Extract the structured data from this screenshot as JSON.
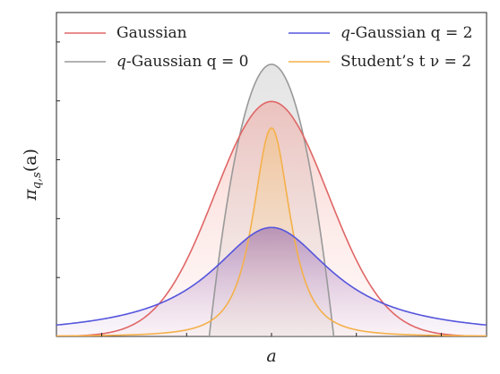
{
  "chart_data": {
    "type": "area",
    "xlabel_var": "a",
    "ylabel_main": "π",
    "ylabel_sub": "q,s",
    "ylabel_arg": "(a)",
    "xlim": [
      -3.8,
      3.8
    ],
    "ylim": [
      0,
      0.55
    ],
    "grid": false,
    "legend_placement": "top",
    "series": [
      {
        "name_pre": "",
        "name_var": "",
        "name_post": "Gaussian",
        "color": "#e06666",
        "fill": "#f4b6b0",
        "kind": "gaussian",
        "params": {
          "sigma": 1.0
        }
      },
      {
        "name_pre": "",
        "name_var": "q",
        "name_post": "-Gaussian q = 0",
        "color": "#999999",
        "fill": "#d8d8d8",
        "kind": "qgauss0",
        "params": {
          "width": 1.1,
          "peak": 0.462
        }
      },
      {
        "name_pre": "",
        "name_var": "q",
        "name_post": "-Gaussian q = 2",
        "color": "#5555dd",
        "fill": "#b89fd6",
        "kind": "cauchy",
        "params": {
          "gamma": 1.3,
          "peak": 0.185
        }
      },
      {
        "name_pre": "",
        "name_var": "",
        "name_post": "Student’s t ν = 2",
        "color": "#f4b04a",
        "fill": "#f8d699",
        "kind": "student",
        "params": {
          "scale": 0.353,
          "peak": 0.354
        }
      }
    ],
    "y_ticks": [
      0.1,
      0.2,
      0.3,
      0.4,
      0.5
    ],
    "x_ticks": [
      -3,
      -1.5,
      0,
      1.5,
      3
    ]
  }
}
